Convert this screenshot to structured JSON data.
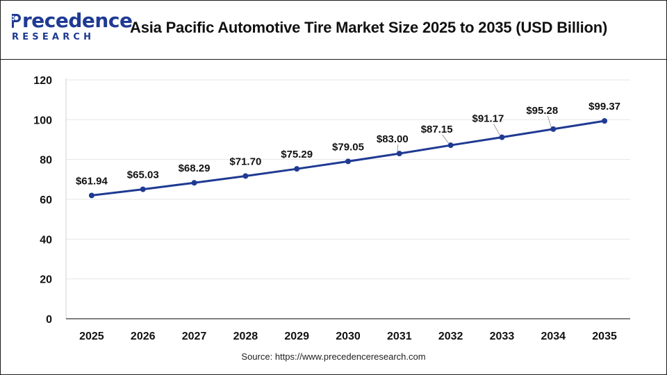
{
  "header": {
    "logo_top": "recedence",
    "logo_p": "P",
    "logo_bottom": "RESEARCH",
    "title": "Asia Pacific Automotive Tire Market Size 2025 to 2035 (USD Billion)"
  },
  "source": "Source: https://www.precedenceresearch.com",
  "colors": {
    "line": "#1f3a93",
    "brand": "#1f3a93",
    "grid": "#e6e6e6",
    "axis": "#333333"
  },
  "chart_data": {
    "type": "line",
    "title": "Asia Pacific Automotive Tire Market Size 2025 to 2035 (USD Billion)",
    "xlabel": "",
    "ylabel": "",
    "x": [
      "2025",
      "2026",
      "2027",
      "2028",
      "2029",
      "2030",
      "2031",
      "2032",
      "2033",
      "2034",
      "2035"
    ],
    "series": [
      {
        "values": [
          61.94,
          65.03,
          68.29,
          71.7,
          75.29,
          79.05,
          83.0,
          87.15,
          91.17,
          95.28,
          99.37
        ],
        "labels": [
          "$61.94",
          "$65.03",
          "$68.29",
          "$71.70",
          "$75.29",
          "$79.05",
          "$83.00",
          "$87.15",
          "$91.17",
          "$95.28",
          "$99.37"
        ]
      }
    ],
    "ylim": [
      0,
      120
    ],
    "yticks": [
      "0",
      "20",
      "40",
      "60",
      "80",
      "100",
      "120"
    ],
    "grid": true,
    "legend": "none"
  }
}
